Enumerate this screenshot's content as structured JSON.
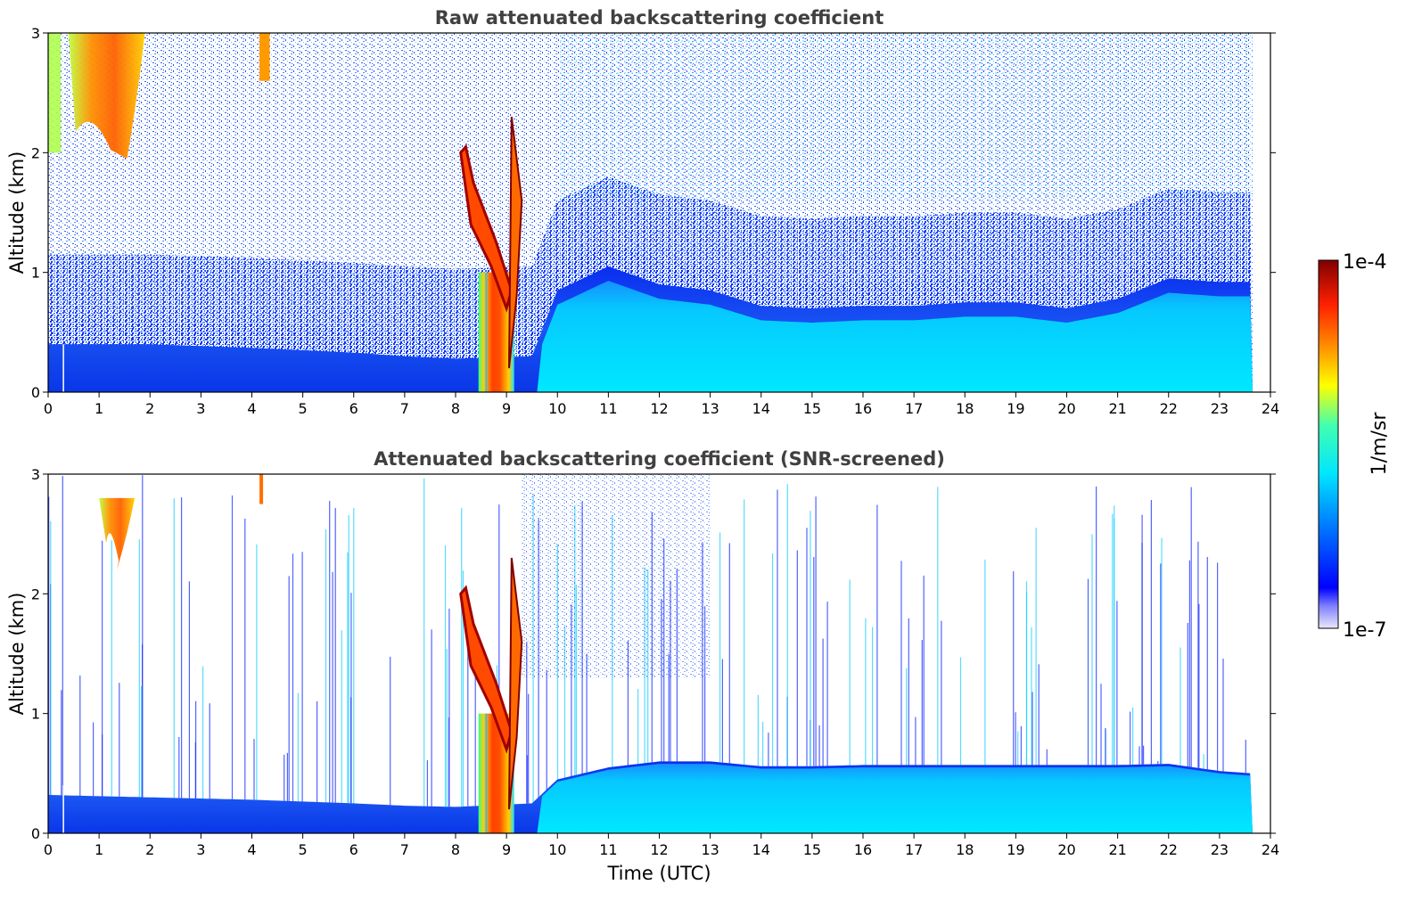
{
  "chart_data": [
    {
      "type": "heatmap",
      "title": "Raw attenuated backscattering coefficient",
      "xlabel": "",
      "ylabel": "Altitude (km)",
      "xlim": [
        0,
        24
      ],
      "ylim": [
        0,
        3
      ],
      "xticks": [
        "0",
        "1",
        "2",
        "3",
        "4",
        "5",
        "6",
        "7",
        "8",
        "9",
        "10",
        "11",
        "12",
        "13",
        "14",
        "15",
        "16",
        "17",
        "18",
        "19",
        "20",
        "21",
        "22",
        "23",
        "24"
      ],
      "yticks": [
        "0",
        "1",
        "2",
        "3"
      ],
      "data_end_time": 23.65,
      "features": [
        {
          "label": "aerosol layer top (km)",
          "times": [
            0,
            2,
            4,
            6,
            7,
            8,
            9.5,
            10,
            11,
            12,
            13,
            14,
            15,
            16,
            17,
            18,
            19,
            20,
            21,
            22,
            23,
            23.65
          ],
          "values": [
            0.4,
            0.4,
            0.37,
            0.33,
            0.3,
            0.28,
            0.3,
            0.85,
            1.05,
            0.9,
            0.85,
            0.72,
            0.7,
            0.72,
            0.72,
            0.75,
            0.75,
            0.7,
            0.78,
            0.95,
            0.92,
            0.92
          ]
        },
        {
          "label": "high cloud",
          "t_start": 0.4,
          "t_end": 1.9,
          "base_km": 1.95,
          "top_km": 3.0,
          "log10_beta_peak": -4.4
        },
        {
          "label": "rain shaft",
          "t_start": 8.45,
          "t_end": 9.15,
          "base_km": 0.0,
          "top_km": 2.0,
          "log10_beta_peak": -4.1
        }
      ]
    },
    {
      "type": "heatmap",
      "title": "Attenuated backscattering coefficient (SNR-screened)",
      "xlabel": "Time (UTC)",
      "ylabel": "Altitude (km)",
      "xlim": [
        0,
        24
      ],
      "ylim": [
        0,
        3
      ],
      "xticks": [
        "0",
        "1",
        "2",
        "3",
        "4",
        "5",
        "6",
        "7",
        "8",
        "9",
        "10",
        "11",
        "12",
        "13",
        "14",
        "15",
        "16",
        "17",
        "18",
        "19",
        "20",
        "21",
        "22",
        "23",
        "24"
      ],
      "yticks": [
        "0",
        "1",
        "2",
        "3"
      ],
      "data_end_time": 23.65,
      "features": [
        {
          "label": "aerosol layer top (km)",
          "times": [
            0,
            2,
            4,
            6,
            7,
            8,
            9.5,
            10,
            11,
            12,
            13,
            14,
            15,
            16,
            17,
            18,
            19,
            20,
            21,
            22,
            23,
            23.65
          ],
          "values": [
            0.32,
            0.3,
            0.28,
            0.25,
            0.23,
            0.22,
            0.25,
            0.45,
            0.55,
            0.6,
            0.6,
            0.56,
            0.56,
            0.57,
            0.57,
            0.57,
            0.57,
            0.57,
            0.57,
            0.58,
            0.52,
            0.5
          ]
        },
        {
          "label": "high cloud",
          "t_start": 1.0,
          "t_end": 1.7,
          "base_km": 2.2,
          "top_km": 2.8,
          "log10_beta_peak": -4.4
        },
        {
          "label": "rain shaft",
          "t_start": 8.45,
          "t_end": 9.15,
          "base_km": 0.0,
          "top_km": 2.0,
          "log10_beta_peak": -4.0
        }
      ]
    }
  ],
  "colorbar": {
    "label": "1/m/sr",
    "max_label": "1e-4",
    "min_label": "1e-7",
    "range_log10": [
      -7,
      -4
    ],
    "colormap": "jet"
  }
}
